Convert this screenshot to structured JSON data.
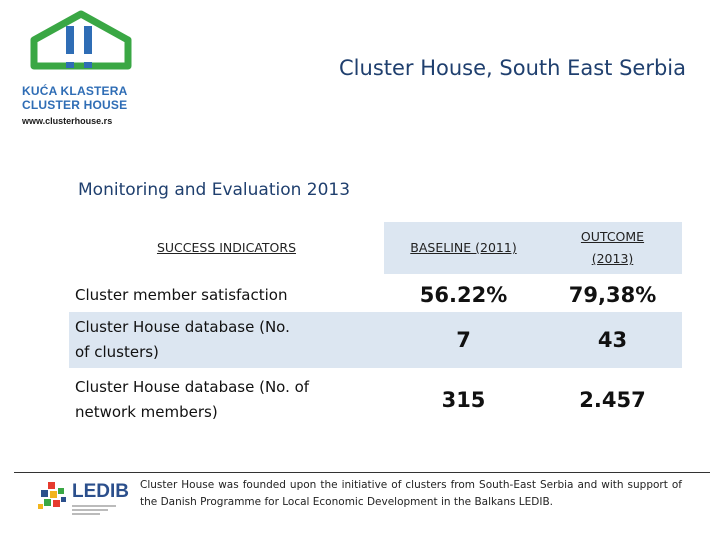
{
  "header": {
    "logo_line1": "KUĆA KLASTERA",
    "logo_line2": "CLUSTER HOUSE",
    "logo_url": "www.clusterhouse.rs",
    "title": "Cluster House, South East Serbia"
  },
  "section": {
    "title": "Monitoring and Evaluation 2013"
  },
  "table": {
    "headers": {
      "indicators": "SUCCESS INDICATORS",
      "baseline": "BASELINE (2011)",
      "outcome": "OUTCOME (2013)"
    },
    "rows": [
      {
        "label": "Cluster member satisfaction",
        "baseline": "56.22%",
        "outcome": "79,38%"
      },
      {
        "label": "Cluster House database (No. of clusters)",
        "baseline": "7",
        "outcome": "43"
      },
      {
        "label": "Cluster House database (No. of network members)",
        "baseline": "315",
        "outcome": "2.457"
      }
    ]
  },
  "footer": {
    "ledib_logo": "LEDIB",
    "text": "Cluster House was founded upon the initiative of clusters from South-East Serbia and with support of the Danish Programme for Local Economic Development in the Balkans LEDIB."
  },
  "colors": {
    "logo_green": "#3aa744",
    "logo_blue": "#2f6db5",
    "title_blue": "#1f3f6e",
    "table_shade": "#dce6f1"
  }
}
